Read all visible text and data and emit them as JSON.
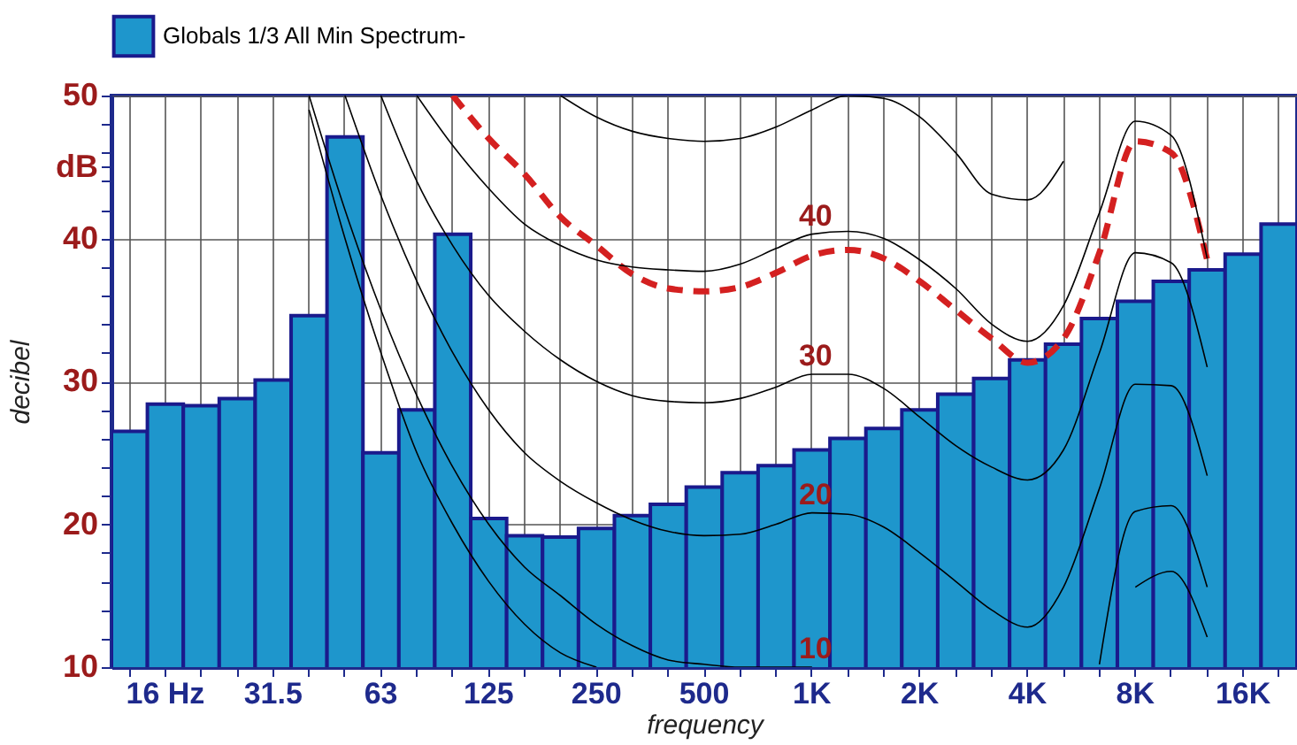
{
  "chart_data": {
    "type": "bar",
    "xlabel": "frequency",
    "ylabel": "decibel",
    "categories": [
      null,
      "16 Hz",
      null,
      null,
      "31.5",
      null,
      null,
      "63",
      null,
      null,
      "125",
      null,
      null,
      "250",
      null,
      null,
      "500",
      null,
      null,
      "1K",
      null,
      null,
      "2K",
      null,
      null,
      "4K",
      null,
      null,
      "8K",
      null,
      null,
      "16K",
      null
    ],
    "series": [
      {
        "name": "Globals 1/3 All Min Spectrum-",
        "color": "#1e96cc",
        "values": [
          26.5,
          28.4,
          28.3,
          28.8,
          30.1,
          34.6,
          47.1,
          25.0,
          28.0,
          40.3,
          20.4,
          19.2,
          19.1,
          19.7,
          20.6,
          21.4,
          22.6,
          23.6,
          24.1,
          25.2,
          26.0,
          26.7,
          28.0,
          29.1,
          30.2,
          31.5,
          32.6,
          34.4,
          35.6,
          37.0,
          37.8,
          38.9,
          41.0
        ]
      },
      {
        "type": "line",
        "color": "#d42020",
        "line_style": "dashed",
        "values": [
          null,
          null,
          null,
          null,
          null,
          null,
          null,
          null,
          null,
          50,
          47,
          44.5,
          41.5,
          39.5,
          37.5,
          36.5,
          36.3,
          36.6,
          37.6,
          38.8,
          39.2,
          38.6,
          37.0,
          35.0,
          33.0,
          31.3,
          33.0,
          39,
          46.8,
          46.0,
          38.5,
          null,
          null
        ]
      },
      {
        "type": "line",
        "color": "#000000",
        "values": [
          null,
          null,
          null,
          null,
          null,
          49,
          40,
          32,
          25,
          20,
          16,
          13,
          11,
          10,
          null,
          null,
          null,
          null,
          null,
          null,
          null,
          null,
          null,
          null,
          null,
          null,
          null,
          null,
          15.6,
          16.7,
          12.1,
          null,
          null
        ]
      },
      {
        "type": "line",
        "color": "#000000",
        "values": [
          null,
          null,
          null,
          null,
          null,
          50,
          42,
          35,
          29,
          24,
          20,
          17,
          15,
          13,
          11.5,
          10.5,
          10.2,
          10,
          10,
          10,
          null,
          null,
          null,
          null,
          null,
          null,
          null,
          10.2,
          20.9,
          21.3,
          15.6,
          null,
          null
        ]
      },
      {
        "type": "line",
        "color": "#000000",
        "values": [
          null,
          null,
          null,
          null,
          null,
          null,
          50,
          43,
          37,
          32,
          28,
          25,
          23,
          21.5,
          20.3,
          19.5,
          19.2,
          19.3,
          20,
          20.8,
          20.7,
          19.8,
          18,
          16,
          14,
          12.8,
          15.6,
          22.5,
          29.8,
          29.7,
          23.4,
          null,
          null
        ]
      },
      {
        "type": "line",
        "color": "#000000",
        "values": [
          null,
          null,
          null,
          null,
          null,
          null,
          null,
          50,
          44,
          39.5,
          36,
          33.5,
          31.5,
          30,
          29,
          28.6,
          28.5,
          28.8,
          29.6,
          30.5,
          30.5,
          29.5,
          27.5,
          25.5,
          24,
          23.1,
          25.2,
          32,
          39,
          38.3,
          31,
          null,
          null
        ]
      },
      {
        "type": "line",
        "color": "#000000",
        "values": [
          null,
          null,
          null,
          null,
          null,
          null,
          null,
          null,
          50,
          46.5,
          43.5,
          41,
          39.5,
          38.5,
          38,
          37.8,
          37.7,
          38.2,
          39.3,
          40.3,
          40.5,
          40,
          38.5,
          36.5,
          34,
          32.8,
          35.3,
          41.8,
          48.2,
          47.2,
          38.6,
          null,
          null
        ]
      },
      {
        "type": "line",
        "color": "#000000",
        "values": [
          null,
          null,
          null,
          null,
          null,
          null,
          null,
          null,
          null,
          null,
          null,
          null,
          50,
          48.5,
          47.5,
          47,
          46.8,
          47,
          47.8,
          49,
          50,
          49.8,
          48.5,
          46,
          43.1,
          42.7,
          45.4,
          null,
          null,
          null,
          null,
          null,
          null
        ]
      }
    ],
    "ylim": [
      10,
      50
    ],
    "yticks": [
      10,
      {
        "value": 12,
        "label": null
      },
      {
        "value": 14,
        "label": null
      },
      {
        "value": 16,
        "label": null
      },
      {
        "value": 18,
        "label": null
      },
      20,
      {
        "value": 22,
        "label": null
      },
      {
        "value": 24,
        "label": null
      },
      {
        "value": 26,
        "label": null
      },
      {
        "value": 28,
        "label": null
      },
      30,
      {
        "value": 32,
        "label": null
      },
      {
        "value": 34,
        "label": null
      },
      {
        "value": 36,
        "label": null
      },
      {
        "value": 38,
        "label": null
      },
      40,
      {
        "value": 42,
        "label": null
      },
      {
        "value": 44,
        "label": null
      },
      {
        "value": 45,
        "label": "dB"
      },
      {
        "value": 46,
        "label": null
      },
      {
        "value": 48,
        "label": null
      },
      50
    ],
    "annotations": [
      {
        "text": "10",
        "x": "1K",
        "y": 10
      },
      {
        "text": "20",
        "x": "1K",
        "y": 20.8
      },
      {
        "text": "30",
        "x": "1K",
        "y": 30.5
      },
      {
        "text": "40",
        "x": "1K",
        "y": 40.3
      }
    ],
    "grid": true,
    "legend": "top",
    "marker": "none"
  }
}
